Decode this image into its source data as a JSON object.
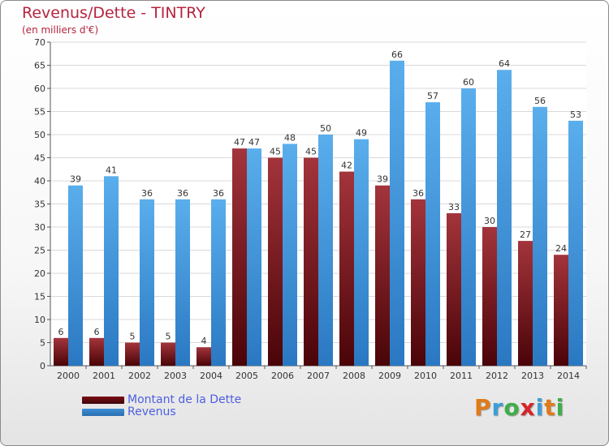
{
  "header": {
    "title": "Revenus/Dette - TINTRY",
    "subtitle": "(en milliers d'€)"
  },
  "legend": {
    "items": [
      {
        "label": "Montant de la Dette",
        "color": "#7a0f16"
      },
      {
        "label": "Revenus",
        "color": "#3d8fd6"
      }
    ]
  },
  "logo": {
    "text": "Proxiti",
    "colors": [
      "#e07b1a",
      "#3b9ed9",
      "#3fae49",
      "#d6252b",
      "#3b9ed9",
      "#e07b1a",
      "#3fae49"
    ]
  },
  "chart_data": {
    "type": "bar",
    "title": "Revenus/Dette - TINTRY",
    "subtitle": "(en milliers d'€)",
    "categories": [
      "2000",
      "2001",
      "2002",
      "2003",
      "2004",
      "2005",
      "2006",
      "2007",
      "2008",
      "2009",
      "2010",
      "2011",
      "2012",
      "2013",
      "2014"
    ],
    "series": [
      {
        "name": "Montant de la Dette",
        "color": "#7a0f16",
        "values": [
          6,
          6,
          5,
          5,
          4,
          47,
          45,
          45,
          42,
          39,
          36,
          33,
          30,
          27,
          24
        ]
      },
      {
        "name": "Revenus",
        "color": "#3d8fd6",
        "values": [
          39,
          41,
          36,
          36,
          36,
          47,
          48,
          50,
          49,
          66,
          57,
          60,
          64,
          56,
          53
        ]
      }
    ],
    "ylim": [
      0,
      70
    ],
    "yticks": [
      0,
      5,
      10,
      15,
      20,
      25,
      30,
      35,
      40,
      45,
      50,
      55,
      60,
      65,
      70
    ],
    "grid": true,
    "legend_position": "bottom-left"
  }
}
